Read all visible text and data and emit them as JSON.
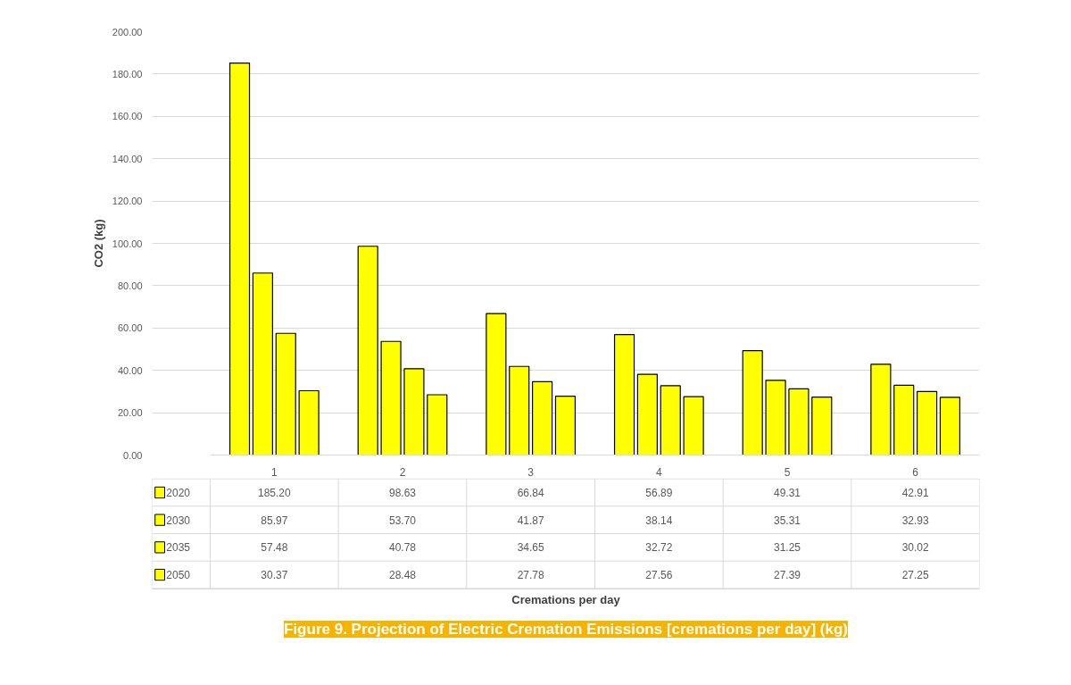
{
  "chart_data": {
    "type": "bar",
    "title": "Figure 9. Projection of Electric Cremation Emissions [cremations per day] (kg)",
    "annotations": [
      "Cremations per day"
    ],
    "ylabel": "CO2 (kg)",
    "categories": [
      "1",
      "2",
      "3",
      "4",
      "5",
      "6"
    ],
    "series": [
      {
        "name": "2020",
        "color": "#ffff00",
        "values": [
          185.2,
          98.63,
          66.84,
          56.89,
          49.31,
          42.91
        ],
        "value_labels": [
          "185.20",
          "98.63",
          "66.84",
          "56.89",
          "49.31",
          "42.91"
        ]
      },
      {
        "name": "2030",
        "color": "#ffff00",
        "values": [
          85.97,
          53.7,
          41.87,
          38.14,
          35.31,
          32.93
        ],
        "value_labels": [
          "85.97",
          "53.70",
          "41.87",
          "38.14",
          "35.31",
          "32.93"
        ]
      },
      {
        "name": "2035",
        "color": "#ffff00",
        "values": [
          57.48,
          40.78,
          34.65,
          32.72,
          31.25,
          30.02
        ],
        "value_labels": [
          "57.48",
          "40.78",
          "34.65",
          "32.72",
          "31.25",
          "30.02"
        ]
      },
      {
        "name": "2050",
        "color": "#ffff00",
        "values": [
          30.37,
          28.48,
          27.78,
          27.56,
          27.39,
          27.25
        ],
        "value_labels": [
          "30.37",
          "28.48",
          "27.78",
          "27.56",
          "27.39",
          "27.25"
        ]
      }
    ],
    "ylim": [
      0,
      200
    ],
    "yticks": [
      {
        "value": 0,
        "label": "0.00"
      },
      {
        "value": 20,
        "label": "20.00"
      },
      {
        "value": 40,
        "label": "40.00"
      },
      {
        "value": 60,
        "label": "60.00"
      },
      {
        "value": 80,
        "label": "80.00"
      },
      {
        "value": 100,
        "label": "100.00"
      },
      {
        "value": 120,
        "label": "120.00"
      },
      {
        "value": 140,
        "label": "140.00"
      },
      {
        "value": 160,
        "label": "160.00"
      },
      {
        "value": 180,
        "label": "180.00"
      },
      {
        "value": 200,
        "label": "200.00"
      }
    ],
    "grid": "y",
    "legend": "bottom"
  }
}
